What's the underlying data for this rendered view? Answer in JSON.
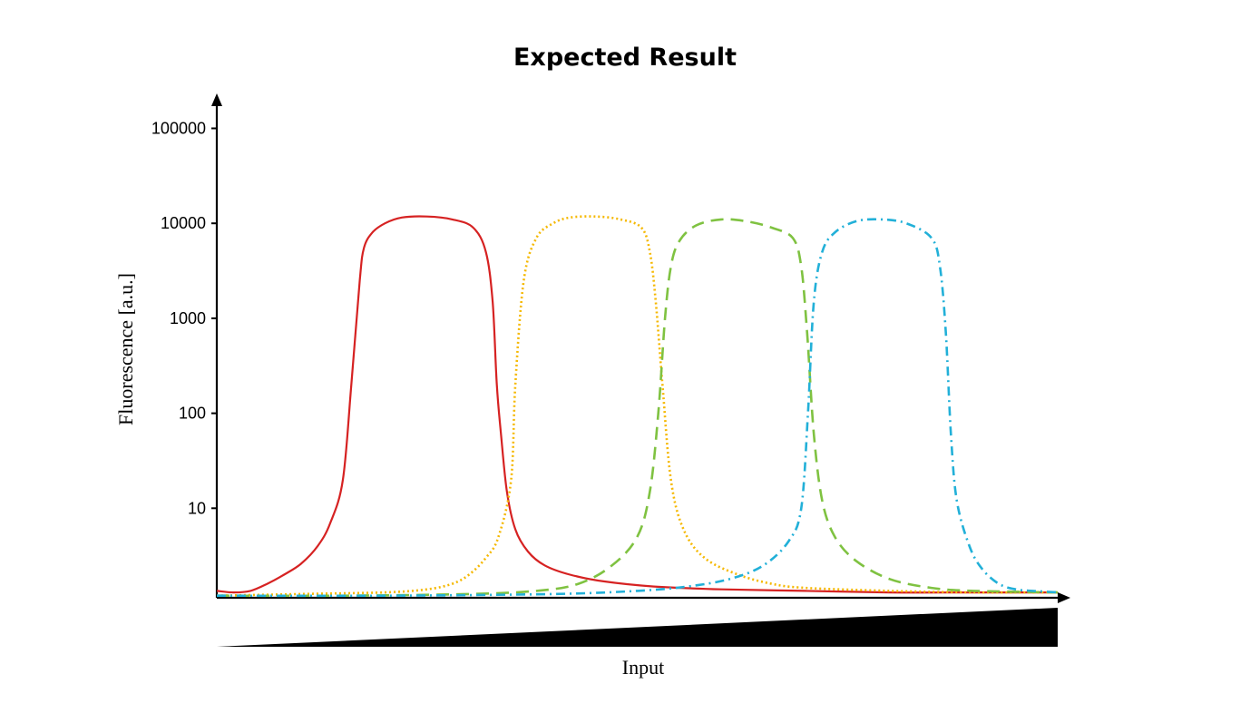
{
  "chart_data": {
    "type": "line",
    "title": "Expected Result",
    "xlabel": "Input",
    "ylabel": "Fluorescence [a.u.]",
    "y_scale": "log",
    "y_ticks": [
      "10",
      "100",
      "1000",
      "10000",
      "100000"
    ],
    "x_ticks": [],
    "ylim": [
      1,
      100000
    ],
    "xlim": [
      0,
      100
    ],
    "grid": false,
    "legend": "none",
    "x_axis_indicator": "increasing wedge",
    "series": [
      {
        "color": "#d62222",
        "dash": "solid",
        "x": [
          0,
          2,
          4,
          6,
          8,
          10,
          12,
          13.5,
          15,
          16,
          17,
          17.5,
          18.5,
          20,
          22,
          25,
          28,
          30.5,
          32,
          32.8,
          33.3,
          33.8,
          34.5,
          35.5,
          37,
          39,
          42,
          46,
          52,
          60,
          70,
          80,
          90,
          100
        ],
        "y": [
          1.35,
          1.3,
          1.35,
          1.6,
          2.0,
          2.6,
          4.0,
          7.0,
          20,
          200,
          2500,
          5500,
          8000,
          10000,
          11500,
          11800,
          11000,
          9000,
          5000,
          1500,
          200,
          60,
          15,
          6.0,
          3.5,
          2.5,
          2.0,
          1.7,
          1.5,
          1.4,
          1.35,
          1.3,
          1.3,
          1.3
        ]
      },
      {
        "color": "#f5b800",
        "dash": "dotted",
        "x": [
          0,
          10,
          20,
          25,
          28,
          30,
          32,
          33.5,
          35,
          35.5,
          36.5,
          38,
          40,
          42,
          45,
          48,
          50.5,
          51.5,
          52.2,
          53,
          54,
          55.5,
          58,
          62,
          66,
          70,
          80,
          90,
          100
        ],
        "y": [
          1.2,
          1.25,
          1.3,
          1.4,
          1.6,
          2.0,
          3.0,
          5.0,
          20,
          200,
          2500,
          7000,
          10000,
          11500,
          11800,
          11000,
          9000,
          5000,
          1500,
          200,
          20,
          6.0,
          3.0,
          2.0,
          1.6,
          1.45,
          1.35,
          1.3,
          1.3
        ]
      },
      {
        "color": "#7fc241",
        "dash": "dashed",
        "x": [
          0,
          15,
          30,
          38,
          43,
          47,
          50,
          51.5,
          52.5,
          53.3,
          54,
          55,
          57,
          60,
          63,
          66,
          68.5,
          69.5,
          70.2,
          71,
          72,
          73.5,
          76,
          80,
          85,
          90,
          100
        ],
        "y": [
          1.2,
          1.2,
          1.25,
          1.35,
          1.6,
          2.5,
          5.0,
          15,
          100,
          1000,
          3500,
          6500,
          9500,
          11000,
          10500,
          9000,
          7000,
          3500,
          700,
          60,
          12,
          5.0,
          2.8,
          1.8,
          1.45,
          1.35,
          1.3
        ]
      },
      {
        "color": "#22b0d8",
        "dash": "dashdot",
        "x": [
          0,
          20,
          40,
          50,
          56,
          61,
          65,
          68,
          69.5,
          70.3,
          71,
          72,
          73.5,
          76,
          79,
          82,
          85,
          86,
          86.7,
          87.3,
          88,
          89.5,
          91,
          93,
          95,
          97,
          100
        ],
        "y": [
          1.2,
          1.2,
          1.25,
          1.35,
          1.5,
          1.8,
          2.5,
          4.5,
          10,
          100,
          1500,
          5000,
          8000,
          10500,
          11000,
          10000,
          7000,
          3500,
          700,
          60,
          12,
          4.0,
          2.3,
          1.6,
          1.4,
          1.35,
          1.3
        ]
      }
    ]
  }
}
